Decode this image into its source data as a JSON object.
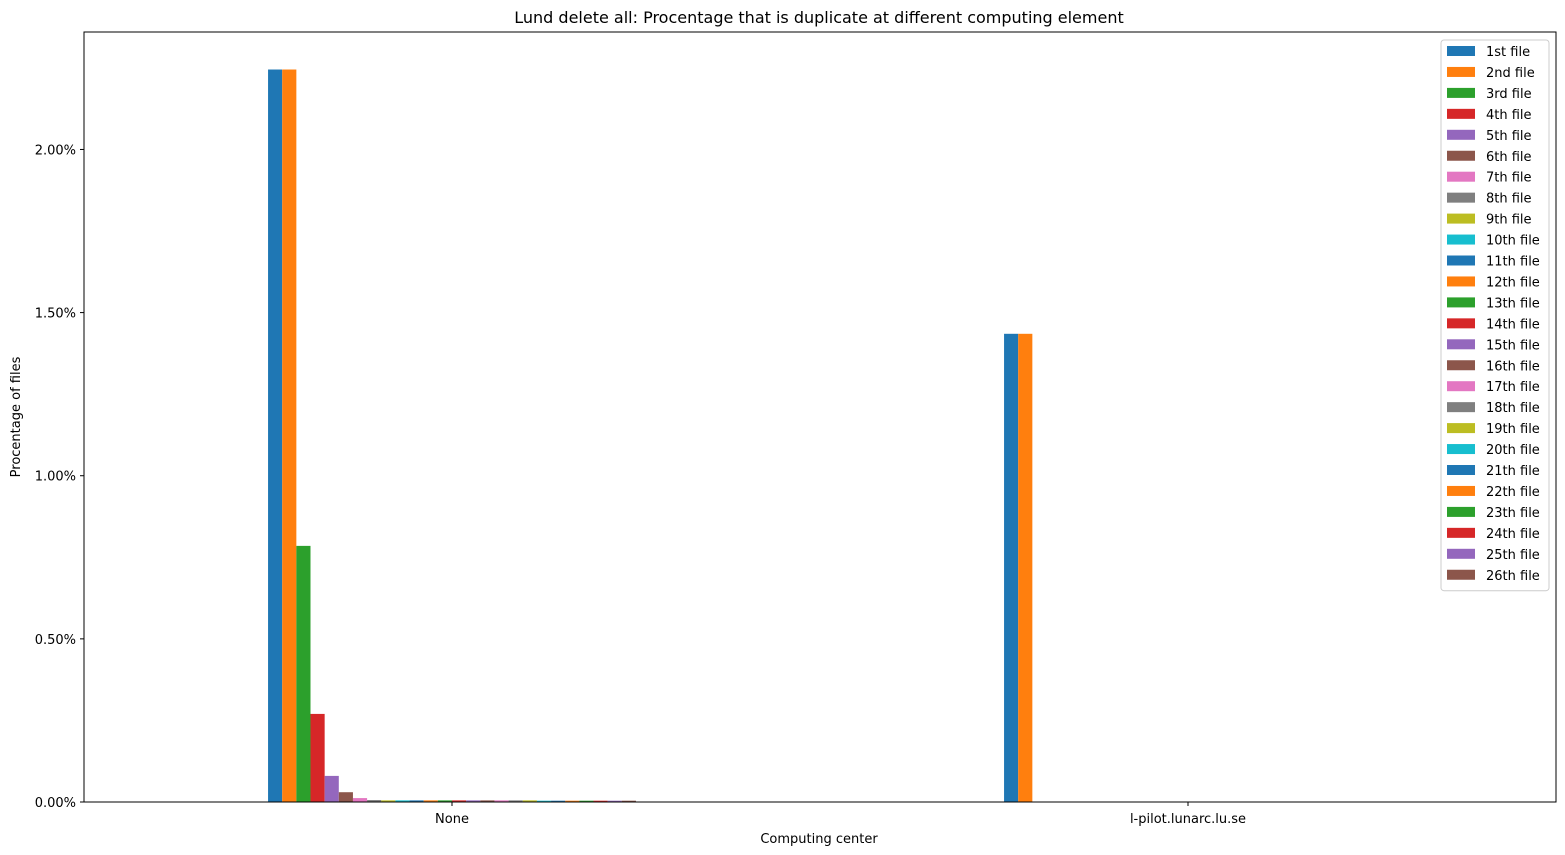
{
  "chart_data": {
    "type": "bar",
    "title": "Lund delete all: Procentage that is duplicate at different computing element",
    "xlabel": "Computing center",
    "ylabel": "Procentage of files",
    "categories": [
      "None",
      "l-pilot.lunarc.lu.se"
    ],
    "ylim": [
      0,
      2.36
    ],
    "yticks": [
      "0.00%",
      "0.50%",
      "1.00%",
      "1.50%",
      "2.00%"
    ],
    "ytick_values": [
      0,
      0.5,
      1.0,
      1.5,
      2.0
    ],
    "legend_position": "top-right",
    "grid": false,
    "series": [
      {
        "name": "1st file",
        "color": "#1f77b4",
        "values": [
          2.245,
          1.435
        ]
      },
      {
        "name": "2nd file",
        "color": "#ff7f0e",
        "values": [
          2.245,
          1.435
        ]
      },
      {
        "name": "3rd file",
        "color": "#2ca02c",
        "values": [
          0.785,
          0
        ]
      },
      {
        "name": "4th file",
        "color": "#d62728",
        "values": [
          0.27,
          0
        ]
      },
      {
        "name": "5th file",
        "color": "#9467bd",
        "values": [
          0.08,
          0
        ]
      },
      {
        "name": "6th file",
        "color": "#8c564b",
        "values": [
          0.03,
          0
        ]
      },
      {
        "name": "7th file",
        "color": "#e377c2",
        "values": [
          0.012,
          0
        ]
      },
      {
        "name": "8th file",
        "color": "#7f7f7f",
        "values": [
          0.006,
          0
        ]
      },
      {
        "name": "9th file",
        "color": "#bcbd22",
        "values": [
          0.005,
          0
        ]
      },
      {
        "name": "10th file",
        "color": "#17becf",
        "values": [
          0.005,
          0
        ]
      },
      {
        "name": "11th file",
        "color": "#1f77b4",
        "values": [
          0.005,
          0
        ]
      },
      {
        "name": "12th file",
        "color": "#ff7f0e",
        "values": [
          0.005,
          0
        ]
      },
      {
        "name": "13th file",
        "color": "#2ca02c",
        "values": [
          0.005,
          0
        ]
      },
      {
        "name": "14th file",
        "color": "#d62728",
        "values": [
          0.005,
          0
        ]
      },
      {
        "name": "15th file",
        "color": "#9467bd",
        "values": [
          0.005,
          0
        ]
      },
      {
        "name": "16th file",
        "color": "#8c564b",
        "values": [
          0.005,
          0
        ]
      },
      {
        "name": "17th file",
        "color": "#e377c2",
        "values": [
          0.005,
          0
        ]
      },
      {
        "name": "18th file",
        "color": "#7f7f7f",
        "values": [
          0.005,
          0
        ]
      },
      {
        "name": "19th file",
        "color": "#bcbd22",
        "values": [
          0.005,
          0
        ]
      },
      {
        "name": "20th file",
        "color": "#17becf",
        "values": [
          0.004,
          0
        ]
      },
      {
        "name": "21th file",
        "color": "#1f77b4",
        "values": [
          0.004,
          0
        ]
      },
      {
        "name": "22th file",
        "color": "#ff7f0e",
        "values": [
          0.004,
          0
        ]
      },
      {
        "name": "23th file",
        "color": "#2ca02c",
        "values": [
          0.004,
          0
        ]
      },
      {
        "name": "24th file",
        "color": "#d62728",
        "values": [
          0.004,
          0
        ]
      },
      {
        "name": "25th file",
        "color": "#9467bd",
        "values": [
          0.004,
          0
        ]
      },
      {
        "name": "26th file",
        "color": "#8c564b",
        "values": [
          0.004,
          0
        ]
      }
    ]
  }
}
